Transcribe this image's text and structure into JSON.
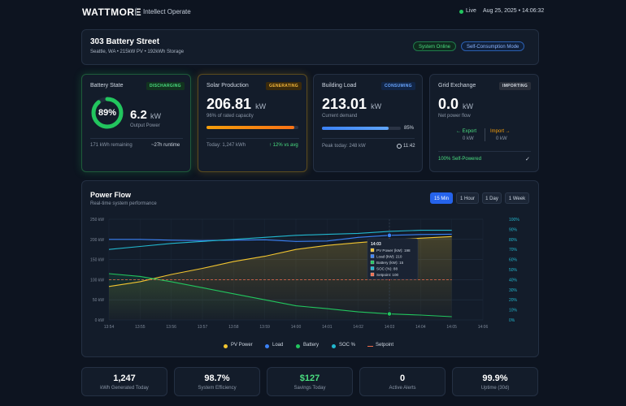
{
  "header": {
    "logo": "WATTMORE",
    "app_name": "Intellect Operate",
    "live_label": "Live",
    "datetime": "Aug 25, 2025 • 14:06:32"
  },
  "site": {
    "name": "303 Battery Street",
    "subtitle": "Seattle, WA • 215kW PV • 192kWh Storage",
    "status_badge": "System Online",
    "mode_badge": "Self-Consumption Mode"
  },
  "battery": {
    "title": "Battery State",
    "badge": "DISCHARGING",
    "soc_label": "89%",
    "soc_fraction": 0.89,
    "power_value": "6.2",
    "power_unit": "kW",
    "power_caption": "Output Power",
    "remaining": "171 kWh remaining",
    "runtime": "~27h runtime"
  },
  "solar": {
    "title": "Solar Production",
    "badge": "GENERATING",
    "value": "206.81",
    "unit": "kW",
    "caption": "96% of rated capacity",
    "progress": 0.96,
    "today": "Today: 1,247 kWh",
    "delta": "↑ 12% vs avg"
  },
  "load": {
    "title": "Building Load",
    "badge": "CONSUMING",
    "value": "213.01",
    "unit": "kW",
    "caption": "Current demand",
    "progress": 0.85,
    "progress_label": "85%",
    "peak": "Peak today: 248 kW",
    "peak_time": "11:42",
    "clock_icon": "clock-icon"
  },
  "grid": {
    "title": "Grid Exchange",
    "badge": "IMPORTING",
    "value": "0.0",
    "unit": "kW",
    "caption": "Net power flow",
    "export_label": "← Export",
    "export_value": "0 kW",
    "import_label": "Import →",
    "import_value": "0 kW",
    "self_powered": "100% Self-Powered",
    "check_icon": "check-icon"
  },
  "power_flow": {
    "title": "Power Flow",
    "subtitle": "Real-time system performance",
    "ranges": [
      "15 Min",
      "1 Hour",
      "1 Day",
      "1 Week"
    ],
    "active_range": "15 Min"
  },
  "chart_data": {
    "type": "line",
    "x": [
      "13:54",
      "13:55",
      "13:56",
      "13:57",
      "13:58",
      "13:59",
      "14:00",
      "14:01",
      "14:02",
      "14:03",
      "14:04",
      "14:05",
      "14:06"
    ],
    "y_left_ticks": [
      "250 kW",
      "200 kW",
      "150 kW",
      "100 kW",
      "50 kW",
      "0 kW"
    ],
    "y_right_ticks": [
      "100%",
      "90%",
      "80%",
      "70%",
      "60%",
      "50%",
      "40%",
      "30%",
      "20%",
      "10%",
      "0%"
    ],
    "ylim_left": [
      0,
      250
    ],
    "ylim_right": [
      0,
      100
    ],
    "series": [
      {
        "name": "PV Power",
        "axis": "left",
        "color": "#f2c530",
        "values": [
          83,
          95,
          113,
          128,
          145,
          158,
          175,
          185,
          192,
          198,
          203,
          207,
          207
        ]
      },
      {
        "name": "Load",
        "axis": "left",
        "color": "#3b82f6",
        "values": [
          200,
          200,
          198,
          197,
          198,
          199,
          195,
          196,
          205,
          210,
          212,
          213,
          213
        ]
      },
      {
        "name": "Battery",
        "axis": "left",
        "color": "#22c55e",
        "values": [
          115,
          108,
          95,
          80,
          65,
          50,
          35,
          28,
          20,
          15,
          12,
          8,
          6
        ]
      },
      {
        "name": "SOC %",
        "axis": "right",
        "color": "#22b8cf",
        "values": [
          70,
          73,
          76,
          78,
          80,
          82,
          84,
          85,
          86,
          88,
          89,
          89,
          89
        ]
      },
      {
        "name": "Setpoint",
        "axis": "left",
        "color": "#ef6b4a",
        "dashed": true,
        "values": [
          100,
          100,
          100,
          100,
          100,
          100,
          100,
          100,
          100,
          100,
          100,
          100,
          100
        ]
      }
    ],
    "grid": true,
    "legend": "bottom",
    "tooltip": {
      "title": "14:03",
      "lines": [
        "PV Power (kW): 198",
        "Load (kW): 210",
        "Battery (kW): 15",
        "SOC (%): 88",
        "Setpoint: 100"
      ]
    }
  },
  "kpis": [
    {
      "value": "1,247",
      "label": "kWh Generated Today"
    },
    {
      "value": "98.7%",
      "label": "System Efficiency"
    },
    {
      "value": "$127",
      "label": "Savings Today"
    },
    {
      "value": "0",
      "label": "Active Alerts"
    },
    {
      "value": "99.9%",
      "label": "Uptime (30d)"
    }
  ],
  "colors": {
    "accent": "#2563eb",
    "green": "#22c55e",
    "yellow": "#f2c530",
    "blue": "#3b82f6",
    "teal": "#22b8cf",
    "red": "#ef6b4a"
  }
}
